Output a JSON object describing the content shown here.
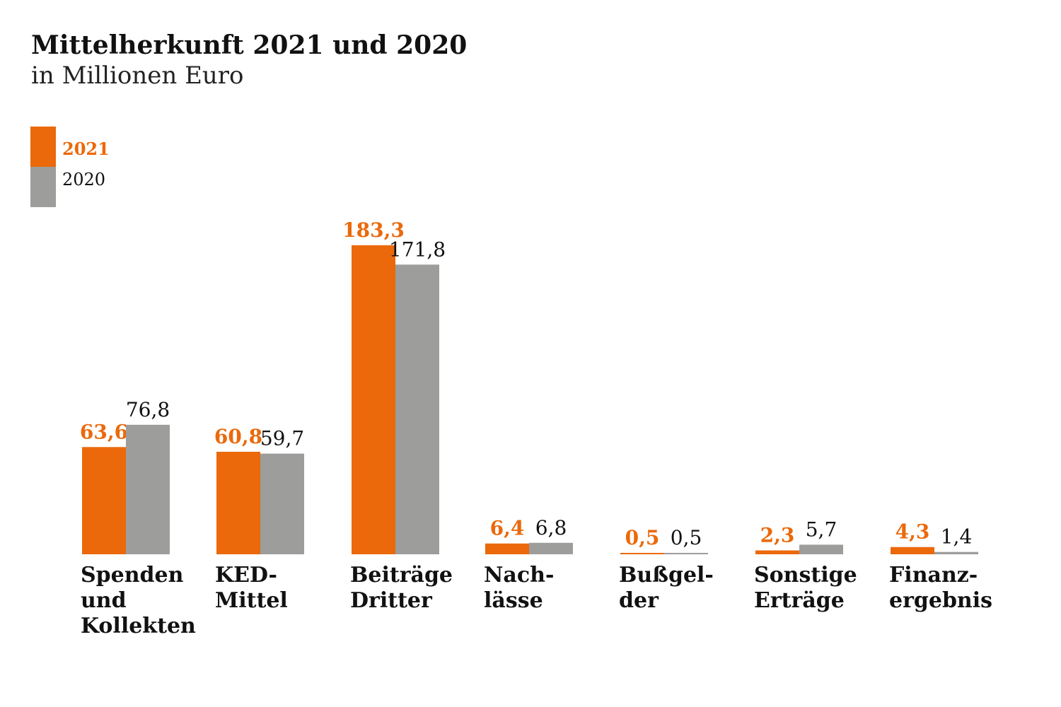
{
  "colors": {
    "c2021": "#eb690b",
    "c2020": "#9d9d9c",
    "text": "#111111"
  },
  "chart_data": {
    "type": "bar",
    "title": "Mittelherkunft 2021 und 2020",
    "subtitle": "in Millionen Euro",
    "xlabel": "",
    "ylabel": "",
    "ylim": [
      0,
      190
    ],
    "grid": false,
    "legend_position": "top-left",
    "categories": [
      [
        "Spenden",
        "und",
        "Kollekten"
      ],
      [
        "KED-",
        "Mittel"
      ],
      [
        "Beiträge",
        "Dritter"
      ],
      [
        "Nach-",
        "lässe"
      ],
      [
        "Bußgel-",
        "der"
      ],
      [
        "Sonstige",
        "Erträge"
      ],
      [
        "Finanz-",
        "ergebnis"
      ]
    ],
    "series": [
      {
        "name": "2021",
        "values": [
          63.6,
          60.8,
          183.3,
          6.4,
          0.5,
          2.3,
          4.3
        ],
        "labels": [
          "63,6",
          "60,8",
          "183,3",
          "6,4",
          "0,5",
          "2,3",
          "4,3"
        ]
      },
      {
        "name": "2020",
        "values": [
          76.8,
          59.7,
          171.8,
          6.8,
          0.5,
          5.7,
          1.4
        ],
        "labels": [
          "76,8",
          "59,7",
          "171,8",
          "6,8",
          "0,5",
          "5,7",
          "1,4"
        ]
      }
    ]
  }
}
